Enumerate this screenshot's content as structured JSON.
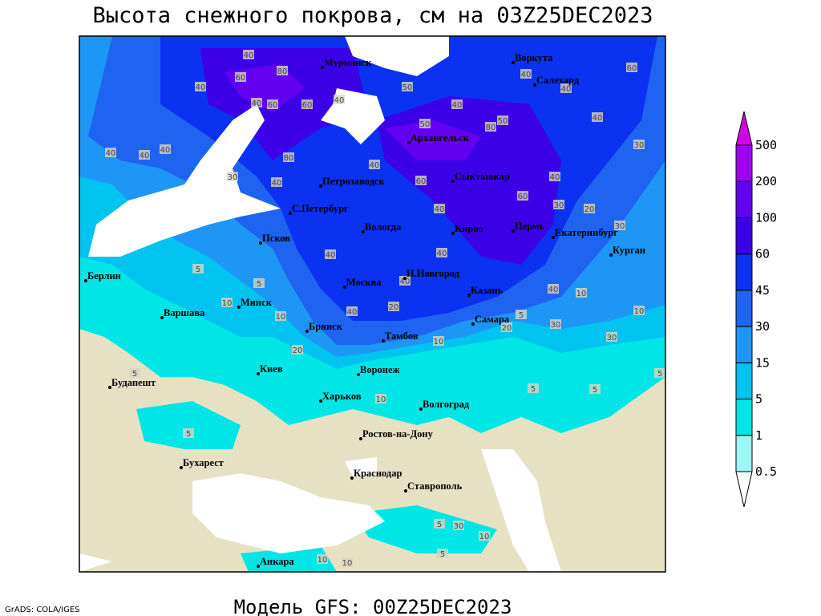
{
  "header": {
    "title": "Высота снежного покрова, см на 03Z25DEC2023"
  },
  "footer": {
    "model": "Модель GFS: 00Z25DEC2023",
    "credit": "GrADS: COLA/IGES"
  },
  "legend": {
    "levels": [
      0.5,
      1,
      5,
      15,
      30,
      45,
      60,
      100,
      200,
      500
    ],
    "colors": [
      "#ffffff",
      "#9ef5f5",
      "#00e6e6",
      "#00c3f0",
      "#1e96f5",
      "#1e64f0",
      "#0a32f0",
      "#3c00e6",
      "#6400f0",
      "#a000f0",
      "#d200e6"
    ]
  },
  "cities": [
    "Мурманск",
    "Воркута",
    "Салехард",
    "Архангельск",
    "Сыктывкар",
    "Петрозаводск",
    "С.Петербург",
    "Вологда",
    "Киров",
    "Пермь",
    "Екатеринбург",
    "Курган",
    "Псков",
    "Н.Новгород",
    "Казань",
    "Москва",
    "Минск",
    "Берлин",
    "Варшава",
    "Брянск",
    "Тамбов",
    "Самара",
    "Киев",
    "Воронеж",
    "Будапешт",
    "Харьков",
    "Волгоград",
    "Ростов-на-Дону",
    "Бухарест",
    "Краснодар",
    "Ставрополь",
    "Анкара"
  ],
  "contour_labels": [
    40,
    80,
    60,
    40,
    40,
    60,
    60,
    40,
    50,
    40,
    50,
    80,
    50,
    40,
    40,
    60,
    40,
    30,
    40,
    40,
    40,
    30,
    40,
    80,
    40,
    60,
    40,
    60,
    40,
    30,
    20,
    30,
    40,
    40,
    40,
    40,
    10,
    10,
    5,
    5,
    10,
    10,
    40,
    20,
    20,
    10,
    20,
    30,
    30,
    5,
    5,
    5,
    5,
    5,
    10,
    5,
    30,
    10,
    5,
    10,
    10,
    5
  ]
}
